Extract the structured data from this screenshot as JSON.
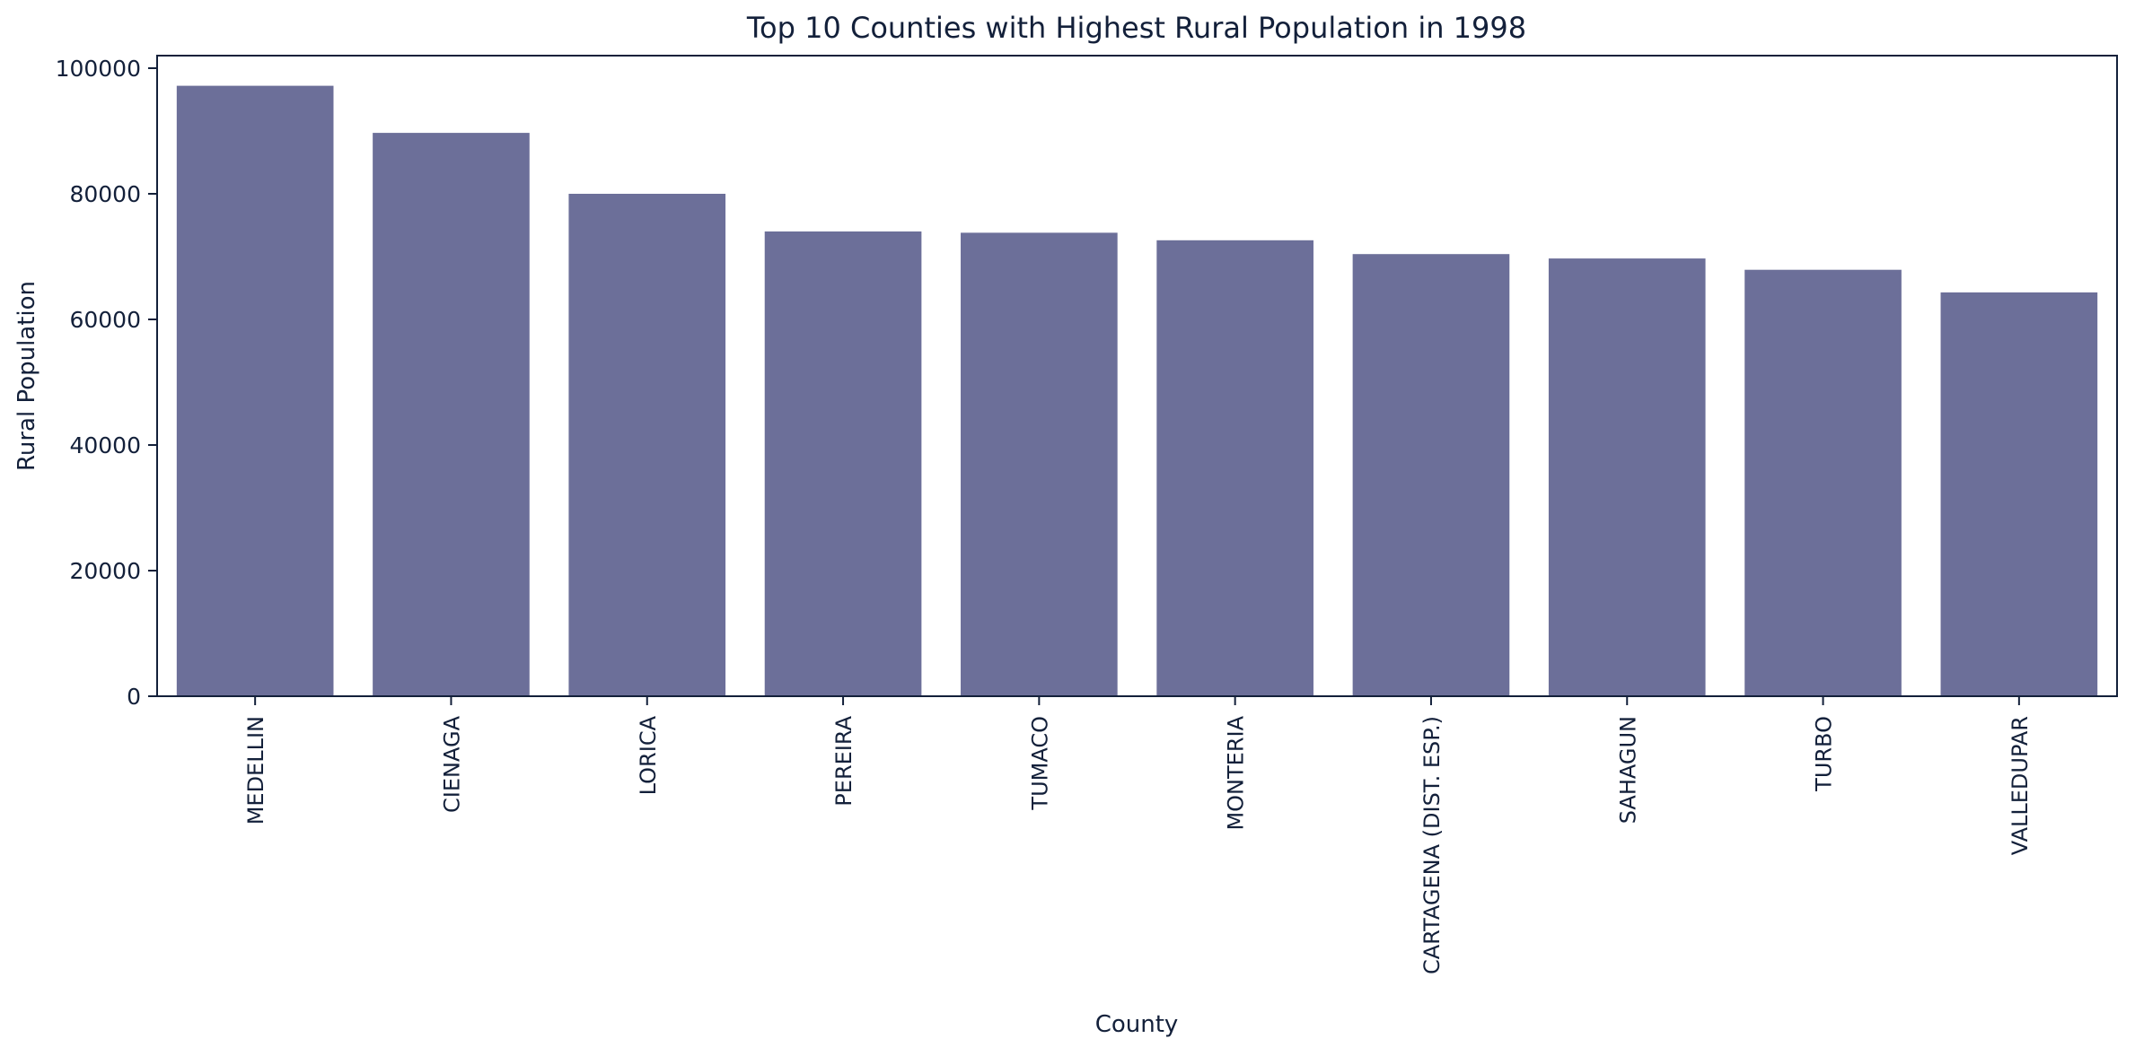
{
  "chart_data": {
    "type": "bar",
    "title": "Top 10 Counties with Highest Rural Population in 1998",
    "xlabel": "County",
    "ylabel": "Rural Population",
    "categories": [
      "MEDELLIN",
      "CIENAGA",
      "LORICA",
      "PEREIRA",
      "TUMACO",
      "MONTERIA",
      "CARTAGENA (DIST. ESP.)",
      "SAHAGUN",
      "TURBO",
      "VALLEDUPAR"
    ],
    "values": [
      97200,
      89700,
      80000,
      74000,
      73800,
      72600,
      70400,
      69700,
      67900,
      64300
    ],
    "ylim": [
      0,
      102000
    ],
    "yticks": [
      "0",
      "20000",
      "40000",
      "60000",
      "80000",
      "100000"
    ],
    "grid": false,
    "bar_color": "#6c6f99"
  }
}
